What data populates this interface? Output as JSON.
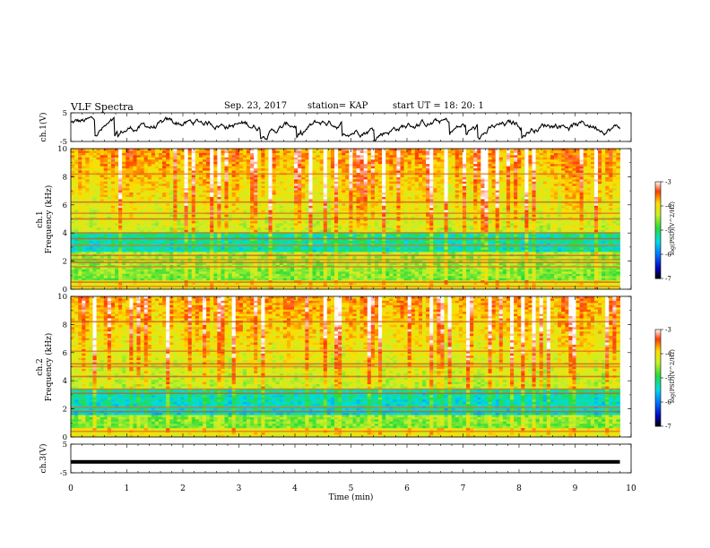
{
  "header": {
    "title": "VLF Spectra",
    "date": "Sep. 23, 2017",
    "station": "station= KAP",
    "start": "start UT =  18: 20: 1"
  },
  "chart_data": [
    {
      "type": "line",
      "panel": "ch1-waveform",
      "ylabel": "ch.1(V)",
      "ylim": [
        -5,
        5
      ],
      "yticks": [
        "5",
        "-5"
      ],
      "xlim": [
        0,
        9.8
      ],
      "note_series": "waveform oscillating roughly between -4 and 4.5 V"
    },
    {
      "type": "heatmap",
      "panel": "ch1-spectrogram",
      "ylabel": "ch.1 Frequency (kHz)",
      "ylim": [
        0,
        10
      ],
      "yticks": [
        "0",
        "2",
        "4",
        "6",
        "8",
        "10"
      ],
      "colorbar": {
        "label": "log(PSD)(V^2/Hz)",
        "range": [
          -7,
          -3
        ],
        "ticks": [
          "-3",
          "-4",
          "-5",
          "-6",
          "-7"
        ]
      },
      "bands_khz": [
        0.2,
        0.5,
        1.6,
        1.9,
        2.1,
        2.4,
        3.1,
        3.6,
        4.0,
        5.0,
        5.4,
        6.2,
        8.2
      ],
      "low_psd_band_khz": [
        2.6,
        4.0
      ]
    },
    {
      "type": "heatmap",
      "panel": "ch2-spectrogram",
      "ylabel": "ch.2 Frequency (kHz)",
      "ylim": [
        0,
        10
      ],
      "yticks": [
        "0",
        "2",
        "4",
        "6",
        "8",
        "10"
      ],
      "colorbar": {
        "label": "log(PSD)(V^2/Hz)",
        "range": [
          -7,
          -3
        ],
        "ticks": [
          "-3",
          "-4",
          "-5",
          "-6",
          "-7"
        ]
      },
      "bands_khz": [
        0.4,
        1.8,
        2.1,
        3.1,
        3.4,
        4.3,
        5.0,
        5.2,
        6.1,
        8.2
      ],
      "low_psd_band_khz": [
        1.5,
        3.5
      ]
    },
    {
      "type": "line",
      "panel": "ch3-waveform",
      "ylabel": "ch.3(V)",
      "ylim": [
        -5,
        5
      ],
      "yticks": [
        "5",
        "-5"
      ],
      "values_const": -1.2,
      "xlim": [
        0,
        9.8
      ]
    }
  ],
  "xaxis": {
    "label": "Time (min)",
    "ticks": [
      "0",
      "1",
      "2",
      "3",
      "4",
      "5",
      "6",
      "7",
      "8",
      "9",
      "10"
    ],
    "range": [
      0,
      10
    ]
  },
  "colors": {
    "ink": "#000000"
  }
}
